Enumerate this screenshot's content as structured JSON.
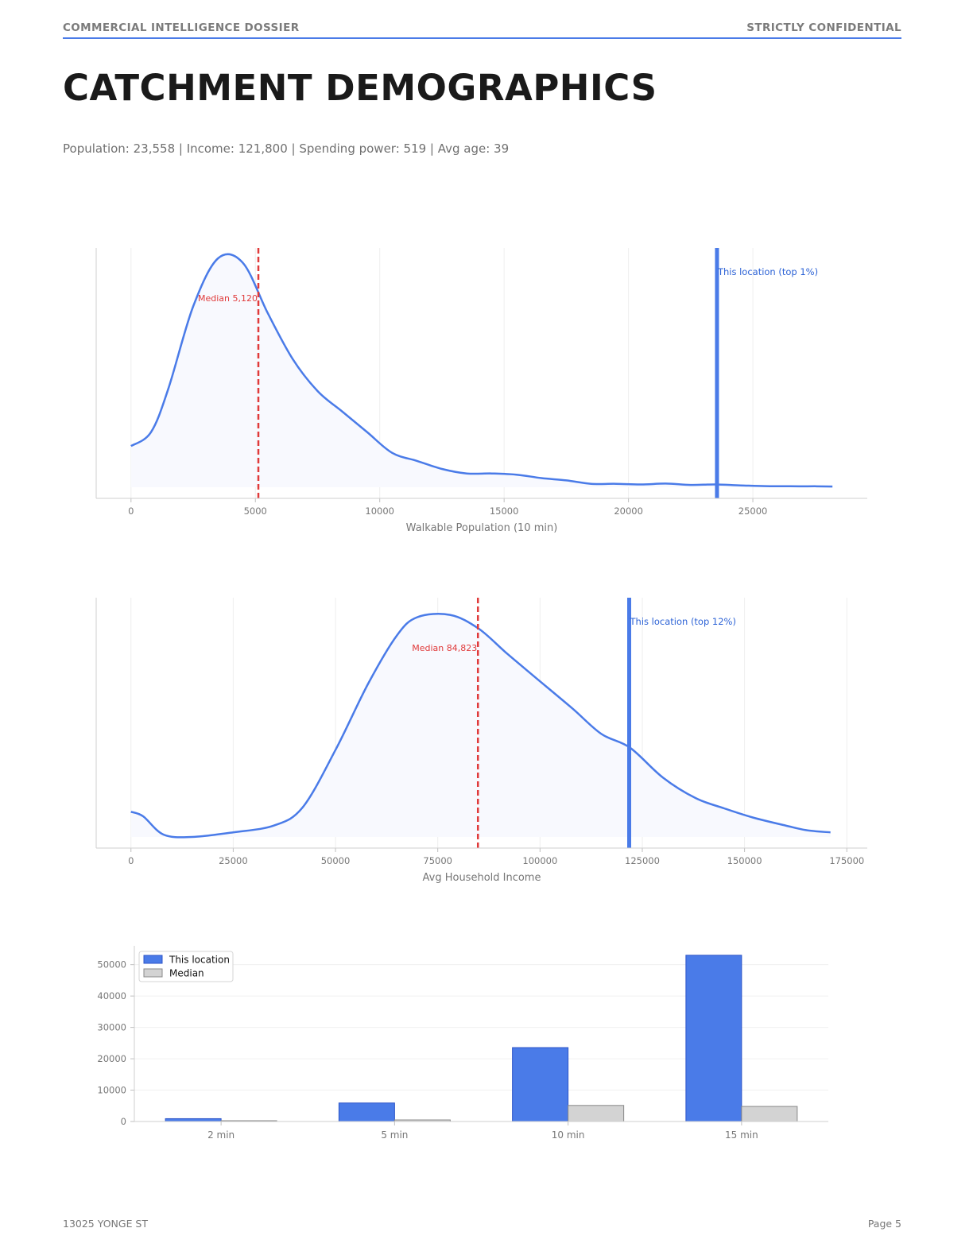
{
  "header": {
    "left": "COMMERCIAL INTELLIGENCE DOSSIER",
    "right": "STRICTLY CONFIDENTIAL"
  },
  "title": "CATCHMENT DEMOGRAPHICS",
  "subtitle": "Population: 23,558 | Income: 121,800 | Spending power: 519 | Avg age: 39",
  "footer": {
    "left": "13025 YONGE ST",
    "right": "Page 5"
  },
  "colors": {
    "accent": "#4a7be8",
    "median": "#e03a3a",
    "fill": "#f8f9fe",
    "bar_median": "#d3d3d3"
  },
  "chart_data": [
    {
      "type": "area",
      "xlabel": "Walkable Population (10 min)",
      "xlim": [
        -1400,
        29600
      ],
      "xticks": [
        "0",
        "5000",
        "10000",
        "15000",
        "20000",
        "25000"
      ],
      "grid": true,
      "x": [
        0,
        800,
        1500,
        2500,
        3500,
        4500,
        5500,
        6500,
        7500,
        8500,
        9500,
        10500,
        11500,
        12500,
        13500,
        14500,
        15500,
        16500,
        17500,
        18500,
        19500,
        20500,
        21500,
        22500,
        23500,
        24500,
        25500,
        26500,
        27500,
        28200
      ],
      "density": [
        0.18,
        0.24,
        0.43,
        0.79,
        1.0,
        0.98,
        0.76,
        0.56,
        0.42,
        0.33,
        0.24,
        0.15,
        0.115,
        0.08,
        0.06,
        0.06,
        0.055,
        0.04,
        0.03,
        0.015,
        0.015,
        0.012,
        0.016,
        0.01,
        0.012,
        0.008,
        0.005,
        0.004,
        0.004,
        0.003
      ],
      "median": {
        "value": 5120,
        "label": "Median 5,120"
      },
      "marker": {
        "value": 23558,
        "label": "This location (top 1%)"
      }
    },
    {
      "type": "area",
      "xlabel": "Avg Household Income",
      "xlim": [
        -8500,
        180000
      ],
      "xticks": [
        "0",
        "25000",
        "50000",
        "75000",
        "100000",
        "125000",
        "150000",
        "175000"
      ],
      "grid": true,
      "x": [
        0,
        3000,
        8000,
        15000,
        25000,
        35000,
        42000,
        50000,
        58000,
        65000,
        70000,
        78000,
        85000,
        92000,
        100000,
        108000,
        115000,
        122000,
        130000,
        138000,
        145000,
        152000,
        160000,
        165000,
        171000
      ],
      "density": [
        0.11,
        0.09,
        0.01,
        0.0,
        0.02,
        0.05,
        0.13,
        0.38,
        0.67,
        0.88,
        0.96,
        0.97,
        0.91,
        0.8,
        0.68,
        0.56,
        0.45,
        0.39,
        0.26,
        0.17,
        0.125,
        0.085,
        0.05,
        0.03,
        0.02
      ],
      "median": {
        "value": 84823,
        "label": "Median 84,823"
      },
      "marker": {
        "value": 121800,
        "label": "This location (top 12%)"
      }
    },
    {
      "type": "bar",
      "categories": [
        "2 min",
        "5 min",
        "10 min",
        "15 min"
      ],
      "series": [
        {
          "name": "This location",
          "values": [
            900,
            5900,
            23558,
            53000
          ]
        },
        {
          "name": "Median",
          "values": [
            100,
            500,
            5120,
            4800
          ]
        }
      ],
      "ylim": [
        0,
        56000
      ],
      "yticks": [
        "0",
        "10000",
        "20000",
        "30000",
        "40000",
        "50000"
      ],
      "legend": "top-left",
      "grid": true
    }
  ]
}
